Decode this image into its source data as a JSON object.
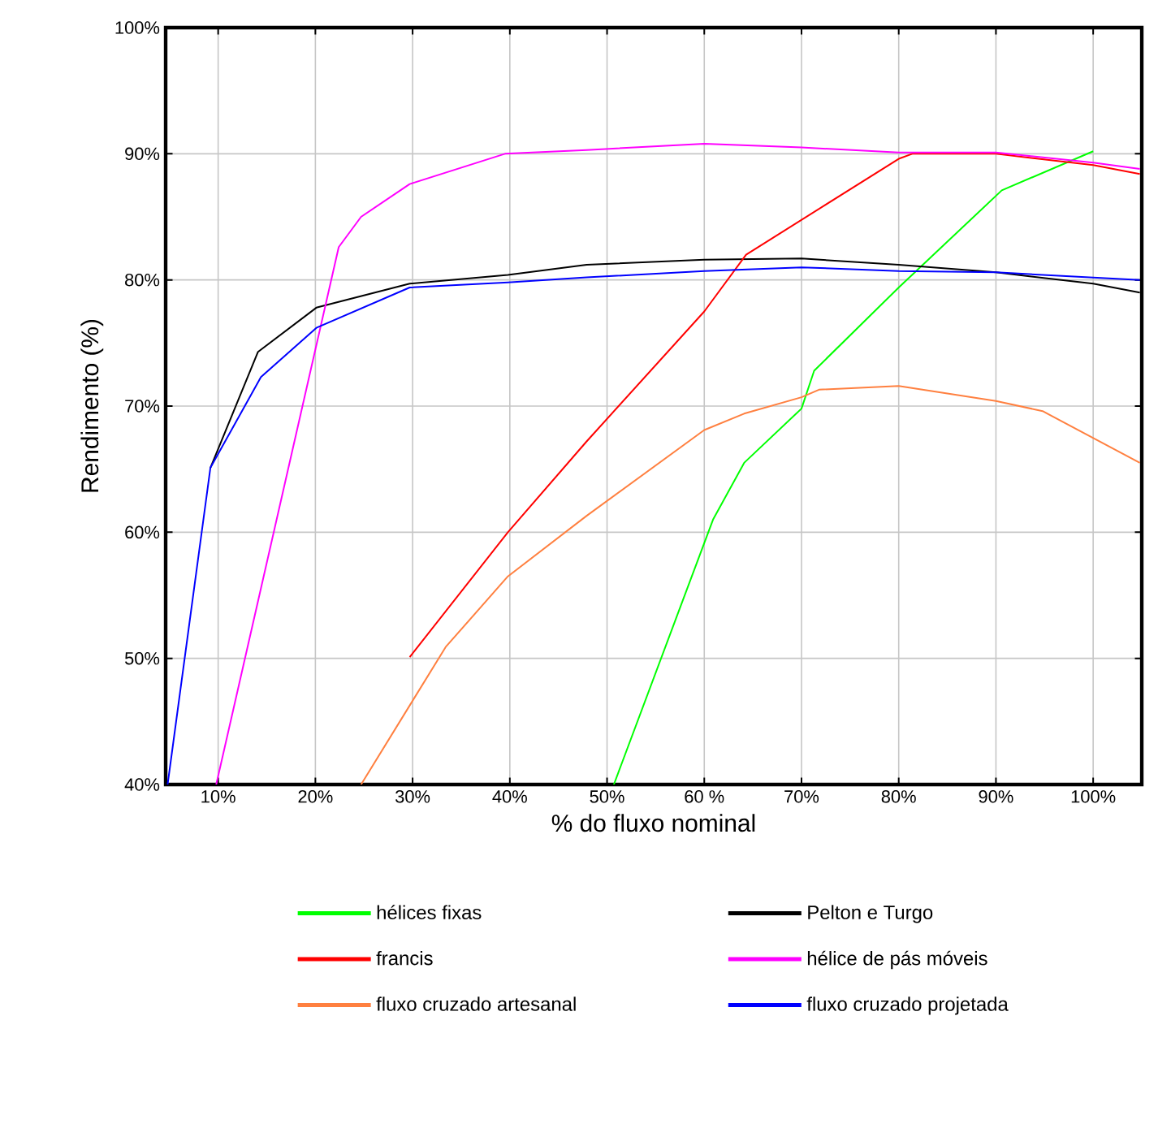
{
  "chart_data": {
    "type": "line",
    "xlabel": "% do fluxo nominal",
    "ylabel": "Rendimento (%)",
    "xlim": [
      4.6,
      105
    ],
    "ylim": [
      40,
      100
    ],
    "xticks": [
      {
        "value": 10,
        "label": "10%"
      },
      {
        "value": 20,
        "label": "20%"
      },
      {
        "value": 30,
        "label": "30%"
      },
      {
        "value": 40,
        "label": "40%"
      },
      {
        "value": 50,
        "label": "50%"
      },
      {
        "value": 60,
        "label": "60 %"
      },
      {
        "value": 70,
        "label": "70%"
      },
      {
        "value": 80,
        "label": "80%"
      },
      {
        "value": 90,
        "label": "90%"
      },
      {
        "value": 100,
        "label": "100%"
      }
    ],
    "yticks": [
      {
        "value": 40,
        "label": "40%"
      },
      {
        "value": 50,
        "label": "50%"
      },
      {
        "value": 60,
        "label": "60%"
      },
      {
        "value": 70,
        "label": "70%"
      },
      {
        "value": 80,
        "label": "80%"
      },
      {
        "value": 90,
        "label": "90%"
      },
      {
        "value": 100,
        "label": "100%"
      }
    ],
    "grid": true,
    "legend": "bottom",
    "marker": "none",
    "line_style": "solid",
    "series": [
      {
        "name": "hélices fixas",
        "color": "#00ff00",
        "x": [
          50.7,
          60.9,
          64.1,
          70,
          71.3,
          80,
          90.6,
          100
        ],
        "values": [
          40,
          61.0,
          65.5,
          69.8,
          72.8,
          79.4,
          87.1,
          90.2
        ]
      },
      {
        "name": "Pelton e Turgo",
        "color": "#000000",
        "x": [
          9.2,
          14.1,
          20.1,
          29.7,
          39.8,
          47.9,
          60,
          70,
          80,
          90,
          100,
          104.8
        ],
        "values": [
          65.1,
          74.3,
          77.8,
          79.7,
          80.4,
          81.2,
          81.6,
          81.7,
          81.2,
          80.6,
          79.7,
          79.0
        ]
      },
      {
        "name": "francis",
        "color": "#ff0000",
        "x": [
          29.7,
          39.8,
          47.9,
          60,
          64.3,
          80,
          81.4,
          90,
          100,
          104.8
        ],
        "values": [
          50.1,
          60.0,
          67.2,
          77.5,
          82.0,
          89.6,
          90.0,
          90.0,
          89.1,
          88.4
        ]
      },
      {
        "name": "hélice de pás móveis",
        "color": "#ff00ff",
        "x": [
          9.8,
          22.4,
          24.7,
          29.7,
          39.5,
          47.9,
          60,
          70,
          80,
          90,
          100,
          104.8
        ],
        "values": [
          40,
          82.6,
          85.0,
          87.6,
          90.0,
          90.3,
          90.8,
          90.5,
          90.1,
          90.1,
          89.3,
          88.8
        ]
      },
      {
        "name": "fluxo cruzado artesanal",
        "color": "#ff8040",
        "x": [
          24.7,
          33.4,
          39.8,
          47.9,
          60,
          64.1,
          70,
          71.8,
          80,
          90,
          94.8,
          104.8
        ],
        "values": [
          40,
          50.9,
          56.5,
          61.3,
          68.1,
          69.4,
          70.7,
          71.3,
          71.6,
          70.4,
          69.6,
          65.5
        ]
      },
      {
        "name": "fluxo cruzado projetada",
        "color": "#0000ff",
        "x": [
          4.8,
          9.2,
          14.4,
          20.1,
          29.7,
          39.8,
          47.9,
          60,
          70,
          80,
          90,
          104.8
        ],
        "values": [
          40,
          65.1,
          72.3,
          76.2,
          79.4,
          79.8,
          80.2,
          80.7,
          81.0,
          80.7,
          80.6,
          80.0
        ]
      }
    ]
  }
}
